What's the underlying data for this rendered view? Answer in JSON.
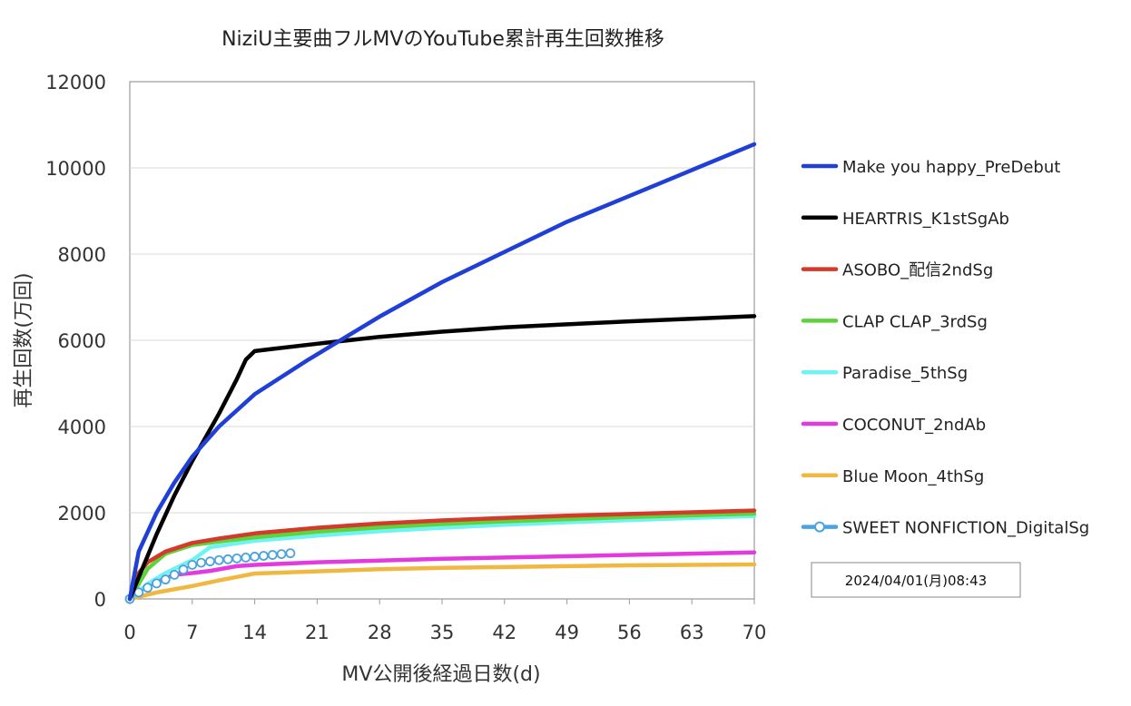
{
  "chart_data": {
    "type": "line",
    "title": "NiziU主要曲フルMVのYouTube累計再生回数推移",
    "xlabel": "MV公開後経過日数(d)",
    "ylabel": "再生回数(万回)",
    "xlim": [
      0,
      70
    ],
    "ylim": [
      0,
      12000
    ],
    "xticks": [
      0,
      7,
      14,
      21,
      28,
      35,
      42,
      49,
      56,
      63,
      70
    ],
    "yticks": [
      0,
      2000,
      4000,
      6000,
      8000,
      10000,
      12000
    ],
    "grid": true,
    "legend_position": "right",
    "timestamp": "2024/04/01(月)08:43",
    "series": [
      {
        "name": "Make you happy_PreDebut",
        "color": "#1f3fd6",
        "marker": "none",
        "x": [
          0,
          1,
          3,
          5,
          7,
          10,
          14,
          20,
          28,
          35,
          42,
          49,
          56,
          63,
          70
        ],
        "y": [
          0,
          1100,
          2000,
          2700,
          3300,
          4000,
          4750,
          5550,
          6550,
          7350,
          8050,
          8750,
          9350,
          9950,
          10550
        ]
      },
      {
        "name": "HEARTRIS_K1stSgAb",
        "color": "#000000",
        "marker": "none",
        "x": [
          0,
          1,
          3,
          5,
          7,
          10,
          12,
          13,
          14,
          16,
          21,
          28,
          35,
          42,
          49,
          56,
          63,
          70
        ],
        "y": [
          0,
          500,
          1500,
          2400,
          3200,
          4300,
          5100,
          5550,
          5750,
          5800,
          5920,
          6080,
          6200,
          6300,
          6370,
          6440,
          6500,
          6560
        ]
      },
      {
        "name": "ASOBO_配信2ndSg",
        "color": "#d23a2c",
        "marker": "none",
        "x": [
          0,
          1,
          2,
          4,
          7,
          10,
          14,
          21,
          28,
          35,
          42,
          49,
          56,
          63,
          70
        ],
        "y": [
          0,
          600,
          850,
          1100,
          1300,
          1400,
          1520,
          1650,
          1750,
          1820,
          1880,
          1930,
          1970,
          2010,
          2050
        ]
      },
      {
        "name": "CLAP CLAP_3rdSg",
        "color": "#5fd33a",
        "marker": "none",
        "x": [
          0,
          2,
          4,
          7,
          10,
          14,
          21,
          28,
          35,
          42,
          49,
          56,
          63,
          70
        ],
        "y": [
          0,
          700,
          1050,
          1250,
          1330,
          1430,
          1560,
          1660,
          1740,
          1800,
          1850,
          1900,
          1940,
          1980
        ]
      },
      {
        "name": "Paradise_5thSg",
        "color": "#6ef2f2",
        "marker": "none",
        "x": [
          0,
          2,
          4,
          7,
          9,
          14,
          21,
          28,
          35,
          42,
          49,
          56,
          63,
          70
        ],
        "y": [
          0,
          350,
          600,
          900,
          1200,
          1350,
          1470,
          1570,
          1650,
          1720,
          1780,
          1830,
          1880,
          1920
        ]
      },
      {
        "name": "COCONUT_2ndAb",
        "color": "#e33ae0",
        "marker": "none",
        "x": [
          0,
          1,
          3,
          5,
          7,
          9,
          12,
          14,
          21,
          28,
          35,
          42,
          49,
          56,
          63,
          70
        ],
        "y": [
          0,
          200,
          400,
          560,
          600,
          650,
          760,
          790,
          850,
          890,
          930,
          960,
          990,
          1020,
          1050,
          1080
        ]
      },
      {
        "name": "Blue Moon_4thSg",
        "color": "#f0b840",
        "marker": "none",
        "x": [
          0,
          3,
          7,
          10,
          14,
          21,
          28,
          35,
          42,
          49,
          56,
          63,
          70
        ],
        "y": [
          0,
          150,
          300,
          430,
          590,
          640,
          690,
          720,
          740,
          760,
          780,
          790,
          800
        ]
      },
      {
        "name": "SWEET NONFICTION_DigitalSg",
        "color": "#4aa3df",
        "marker": "circle",
        "x": [
          0,
          1,
          2,
          3,
          4,
          5,
          6,
          7,
          8,
          9,
          10,
          11,
          12,
          13,
          14,
          15,
          16,
          17,
          18
        ],
        "y": [
          0,
          150,
          260,
          360,
          450,
          560,
          680,
          790,
          840,
          870,
          900,
          920,
          940,
          960,
          980,
          1000,
          1020,
          1040,
          1060
        ]
      }
    ]
  }
}
